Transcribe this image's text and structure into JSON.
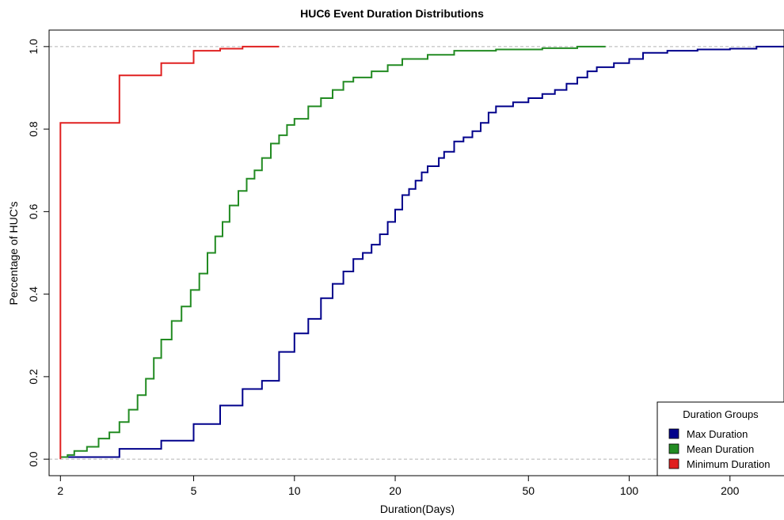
{
  "chart_data": {
    "type": "line",
    "subtype": "step-ecdf",
    "title": "HUC6 Event Duration Distributions",
    "xlabel": "Duration(Days)",
    "ylabel": "Percentage of HUC's",
    "x_scale": "log",
    "xlim": [
      1.85,
      290
    ],
    "ylim": [
      -0.04,
      1.04
    ],
    "x_ticks": [
      2,
      5,
      10,
      20,
      50,
      100,
      200
    ],
    "x_tick_labels": [
      "2",
      "5",
      "10",
      "20",
      "50",
      "100",
      "200"
    ],
    "y_ticks": [
      0.0,
      0.2,
      0.4,
      0.6,
      0.8,
      1.0
    ],
    "y_tick_labels": [
      "0.0",
      "0.2",
      "0.4",
      "0.6",
      "0.8",
      "1.0"
    ],
    "reference_lines_y": [
      0.0,
      1.0
    ],
    "legend": {
      "title": "Duration Groups",
      "position": "bottom-right",
      "entries": [
        "Max Duration",
        "Mean Duration",
        "Minimum Duration"
      ]
    },
    "series": [
      {
        "name": "Max Duration",
        "color": "#00008B",
        "points": [
          [
            2,
            0.005
          ],
          [
            3,
            0.025
          ],
          [
            4,
            0.045
          ],
          [
            5,
            0.085
          ],
          [
            6,
            0.13
          ],
          [
            7,
            0.17
          ],
          [
            8,
            0.19
          ],
          [
            9,
            0.26
          ],
          [
            10,
            0.305
          ],
          [
            11,
            0.34
          ],
          [
            12,
            0.39
          ],
          [
            13,
            0.425
          ],
          [
            14,
            0.455
          ],
          [
            15,
            0.485
          ],
          [
            16,
            0.5
          ],
          [
            17,
            0.52
          ],
          [
            18,
            0.545
          ],
          [
            19,
            0.575
          ],
          [
            20,
            0.605
          ],
          [
            21,
            0.64
          ],
          [
            22,
            0.655
          ],
          [
            23,
            0.675
          ],
          [
            24,
            0.695
          ],
          [
            25,
            0.71
          ],
          [
            27,
            0.73
          ],
          [
            28,
            0.745
          ],
          [
            30,
            0.77
          ],
          [
            32,
            0.78
          ],
          [
            34,
            0.795
          ],
          [
            36,
            0.815
          ],
          [
            38,
            0.84
          ],
          [
            40,
            0.855
          ],
          [
            45,
            0.865
          ],
          [
            50,
            0.875
          ],
          [
            55,
            0.885
          ],
          [
            60,
            0.895
          ],
          [
            65,
            0.91
          ],
          [
            70,
            0.925
          ],
          [
            75,
            0.94
          ],
          [
            80,
            0.95
          ],
          [
            90,
            0.96
          ],
          [
            100,
            0.97
          ],
          [
            110,
            0.985
          ],
          [
            130,
            0.99
          ],
          [
            160,
            0.993
          ],
          [
            200,
            0.995
          ],
          [
            240,
            1.0
          ],
          [
            290,
            1.0
          ]
        ]
      },
      {
        "name": "Mean Duration",
        "color": "#228B22",
        "points": [
          [
            2,
            0.005
          ],
          [
            2.1,
            0.01
          ],
          [
            2.2,
            0.02
          ],
          [
            2.4,
            0.03
          ],
          [
            2.6,
            0.05
          ],
          [
            2.8,
            0.065
          ],
          [
            3.0,
            0.09
          ],
          [
            3.2,
            0.12
          ],
          [
            3.4,
            0.155
          ],
          [
            3.6,
            0.195
          ],
          [
            3.8,
            0.245
          ],
          [
            4.0,
            0.29
          ],
          [
            4.3,
            0.335
          ],
          [
            4.6,
            0.37
          ],
          [
            4.9,
            0.41
          ],
          [
            5.2,
            0.45
          ],
          [
            5.5,
            0.5
          ],
          [
            5.8,
            0.54
          ],
          [
            6.1,
            0.575
          ],
          [
            6.4,
            0.615
          ],
          [
            6.8,
            0.65
          ],
          [
            7.2,
            0.68
          ],
          [
            7.6,
            0.7
          ],
          [
            8.0,
            0.73
          ],
          [
            8.5,
            0.765
          ],
          [
            9.0,
            0.785
          ],
          [
            9.5,
            0.81
          ],
          [
            10.0,
            0.825
          ],
          [
            11.0,
            0.855
          ],
          [
            12.0,
            0.875
          ],
          [
            13.0,
            0.895
          ],
          [
            14.0,
            0.915
          ],
          [
            15.0,
            0.925
          ],
          [
            17.0,
            0.94
          ],
          [
            19.0,
            0.955
          ],
          [
            21.0,
            0.97
          ],
          [
            25.0,
            0.98
          ],
          [
            30.0,
            0.99
          ],
          [
            40.0,
            0.993
          ],
          [
            55.0,
            0.996
          ],
          [
            70.0,
            1.0
          ],
          [
            85.0,
            1.0
          ]
        ]
      },
      {
        "name": "Minimum Duration",
        "color": "#E02020",
        "points": [
          [
            2,
            0.0
          ],
          [
            2,
            0.815
          ],
          [
            3,
            0.93
          ],
          [
            4,
            0.96
          ],
          [
            5,
            0.99
          ],
          [
            6,
            0.995
          ],
          [
            7,
            1.0
          ],
          [
            9,
            1.0
          ]
        ]
      }
    ]
  }
}
